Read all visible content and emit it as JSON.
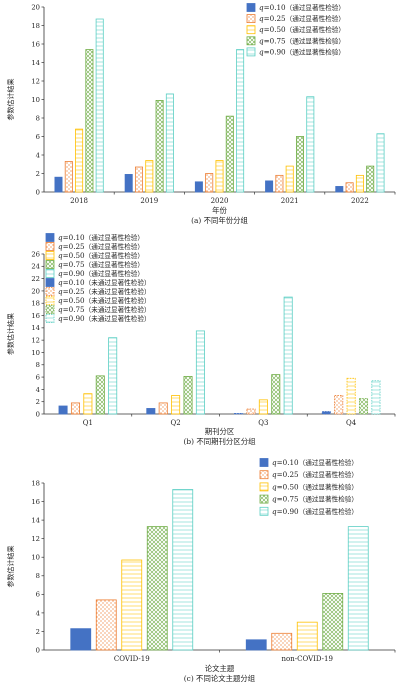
{
  "colors": {
    "q010": "#4472c4",
    "q025": "#ed7d31",
    "q050": "#ffc000",
    "q075": "#70ad47",
    "q090": "#5ccfc4",
    "axis": "#333333",
    "text": "#222222"
  },
  "chart_data": [
    {
      "type": "bar",
      "title": "",
      "caption": "(a) 不同年份分组",
      "xlabel": "年份",
      "ylabel": "参数估计结果",
      "ylim": [
        0,
        20
      ],
      "yticks": [
        0,
        2,
        4,
        6,
        8,
        10,
        12,
        14,
        16,
        18,
        20
      ],
      "categories": [
        "2018",
        "2019",
        "2020",
        "2021",
        "2022"
      ],
      "legend": {
        "placement": "top-right",
        "entries": [
          {
            "q": "q",
            "value": "=0.10",
            "note": "（通过显著性检验）",
            "color_key": "q010",
            "pattern": "solid"
          },
          {
            "q": "q",
            "value": "=0.25",
            "note": "（通过显著性检验）",
            "color_key": "q025",
            "pattern": "dots"
          },
          {
            "q": "q",
            "value": "=0.50",
            "note": "（通过显著性检验）",
            "color_key": "q050",
            "pattern": "lines"
          },
          {
            "q": "q",
            "value": "=0.75",
            "note": "（通过显著性检验）",
            "color_key": "q075",
            "pattern": "grid"
          },
          {
            "q": "q",
            "value": "=0.90",
            "note": "（通过显著性检验）",
            "color_key": "q090",
            "pattern": "lines"
          }
        ]
      },
      "series": [
        {
          "name": "q=0.10（通过显著性检验）",
          "values": [
            1.6,
            1.9,
            1.1,
            1.2,
            0.6
          ]
        },
        {
          "name": "q=0.25（通过显著性检验）",
          "values": [
            3.3,
            2.7,
            2.0,
            1.8,
            1.0
          ]
        },
        {
          "name": "q=0.50（通过显著性检验）",
          "values": [
            6.8,
            3.4,
            3.4,
            2.8,
            1.8
          ]
        },
        {
          "name": "q=0.75（通过显著性检验）",
          "values": [
            15.4,
            9.9,
            8.2,
            6.0,
            2.8
          ]
        },
        {
          "name": "q=0.90（通过显著性检验）",
          "values": [
            18.7,
            10.6,
            15.4,
            10.3,
            6.3
          ]
        }
      ]
    },
    {
      "type": "bar",
      "title": "",
      "caption": "(b) 不同期刊分区分组",
      "xlabel": "期刊分区",
      "ylabel": "参数估计结果",
      "ylim": [
        0,
        26
      ],
      "yticks": [
        0,
        2,
        4,
        6,
        8,
        10,
        12,
        14,
        16,
        18,
        20,
        22,
        24,
        26
      ],
      "categories": [
        "Q1",
        "Q2",
        "Q3",
        "Q4"
      ],
      "legend": {
        "placement": "top-left",
        "entries": [
          {
            "q": "q",
            "value": "=0.10",
            "note": "（通过显著性检验）",
            "color_key": "q010",
            "pattern": "solid"
          },
          {
            "q": "q",
            "value": "=0.25",
            "note": "（通过显著性检验）",
            "color_key": "q025",
            "pattern": "dots"
          },
          {
            "q": "q",
            "value": "=0.50",
            "note": "（通过显著性检验）",
            "color_key": "q050",
            "pattern": "lines"
          },
          {
            "q": "q",
            "value": "=0.75",
            "note": "（通过显著性检验）",
            "color_key": "q075",
            "pattern": "grid"
          },
          {
            "q": "q",
            "value": "=0.90",
            "note": "（通过显著性检验）",
            "color_key": "q090",
            "pattern": "lines"
          },
          {
            "q": "q",
            "value": "=0.10",
            "note": "（未通过显著性检验）",
            "color_key": "q010",
            "pattern": "solid"
          },
          {
            "q": "q",
            "value": "=0.25",
            "note": "（未通过显著性检验）",
            "color_key": "q025",
            "pattern": "dots",
            "dashed": true
          },
          {
            "q": "q",
            "value": "=0.50",
            "note": "（未通过显著性检验）",
            "color_key": "q050",
            "pattern": "lines",
            "dashed": true
          },
          {
            "q": "q",
            "value": "=0.75",
            "note": "（未通过显著性检验）",
            "color_key": "q075",
            "pattern": "grid",
            "dashed": true
          },
          {
            "q": "q",
            "value": "=0.90",
            "note": "（未通过显著性检验）",
            "color_key": "q090",
            "pattern": "lines",
            "dashed": true
          }
        ]
      },
      "series": [
        {
          "name": "q=0.10",
          "values": [
            1.3,
            0.9,
            0.1,
            0.4
          ],
          "significant": [
            true,
            true,
            false,
            false
          ]
        },
        {
          "name": "q=0.25",
          "values": [
            1.8,
            1.8,
            0.8,
            3.0
          ],
          "significant": [
            true,
            true,
            false,
            false
          ]
        },
        {
          "name": "q=0.50",
          "values": [
            3.3,
            3.0,
            2.3,
            5.8
          ],
          "significant": [
            true,
            true,
            true,
            false
          ]
        },
        {
          "name": "q=0.75",
          "values": [
            6.2,
            6.1,
            6.4,
            2.5
          ],
          "significant": [
            true,
            true,
            true,
            false
          ]
        },
        {
          "name": "q=0.90",
          "values": [
            12.4,
            13.5,
            19.0,
            5.4
          ],
          "significant": [
            true,
            true,
            true,
            false
          ]
        }
      ]
    },
    {
      "type": "bar",
      "title": "",
      "caption": "(c) 不同论文主题分组",
      "xlabel": "论文主题",
      "ylabel": "参数估计结果",
      "ylim": [
        0,
        18
      ],
      "yticks": [
        0,
        2,
        4,
        6,
        8,
        10,
        12,
        14,
        16,
        18
      ],
      "categories": [
        "COVID-19",
        "non-COVID-19"
      ],
      "legend": {
        "placement": "top-right",
        "entries": [
          {
            "q": "q",
            "value": "=0.10",
            "note": "（通过显著性检验）",
            "color_key": "q010",
            "pattern": "solid"
          },
          {
            "q": "q",
            "value": "=0.25",
            "note": "（通过显著性检验）",
            "color_key": "q025",
            "pattern": "dots"
          },
          {
            "q": "q",
            "value": "=0.50",
            "note": "（通过显著性检验）",
            "color_key": "q050",
            "pattern": "lines"
          },
          {
            "q": "q",
            "value": "=0.75",
            "note": "（通过显著性检验）",
            "color_key": "q075",
            "pattern": "grid"
          },
          {
            "q": "q",
            "value": "=0.90",
            "note": "（通过显著性检验）",
            "color_key": "q090",
            "pattern": "lines"
          }
        ]
      },
      "series": [
        {
          "name": "q=0.10（通过显著性检验）",
          "values": [
            2.3,
            1.1
          ]
        },
        {
          "name": "q=0.25（通过显著性检验）",
          "values": [
            5.4,
            1.8
          ]
        },
        {
          "name": "q=0.50（通过显著性检验）",
          "values": [
            9.7,
            3.0
          ]
        },
        {
          "name": "q=0.75（通过显著性检验）",
          "values": [
            13.3,
            6.1
          ]
        },
        {
          "name": "q=0.90（通过显著性检验）",
          "values": [
            17.3,
            13.3
          ]
        }
      ]
    }
  ]
}
